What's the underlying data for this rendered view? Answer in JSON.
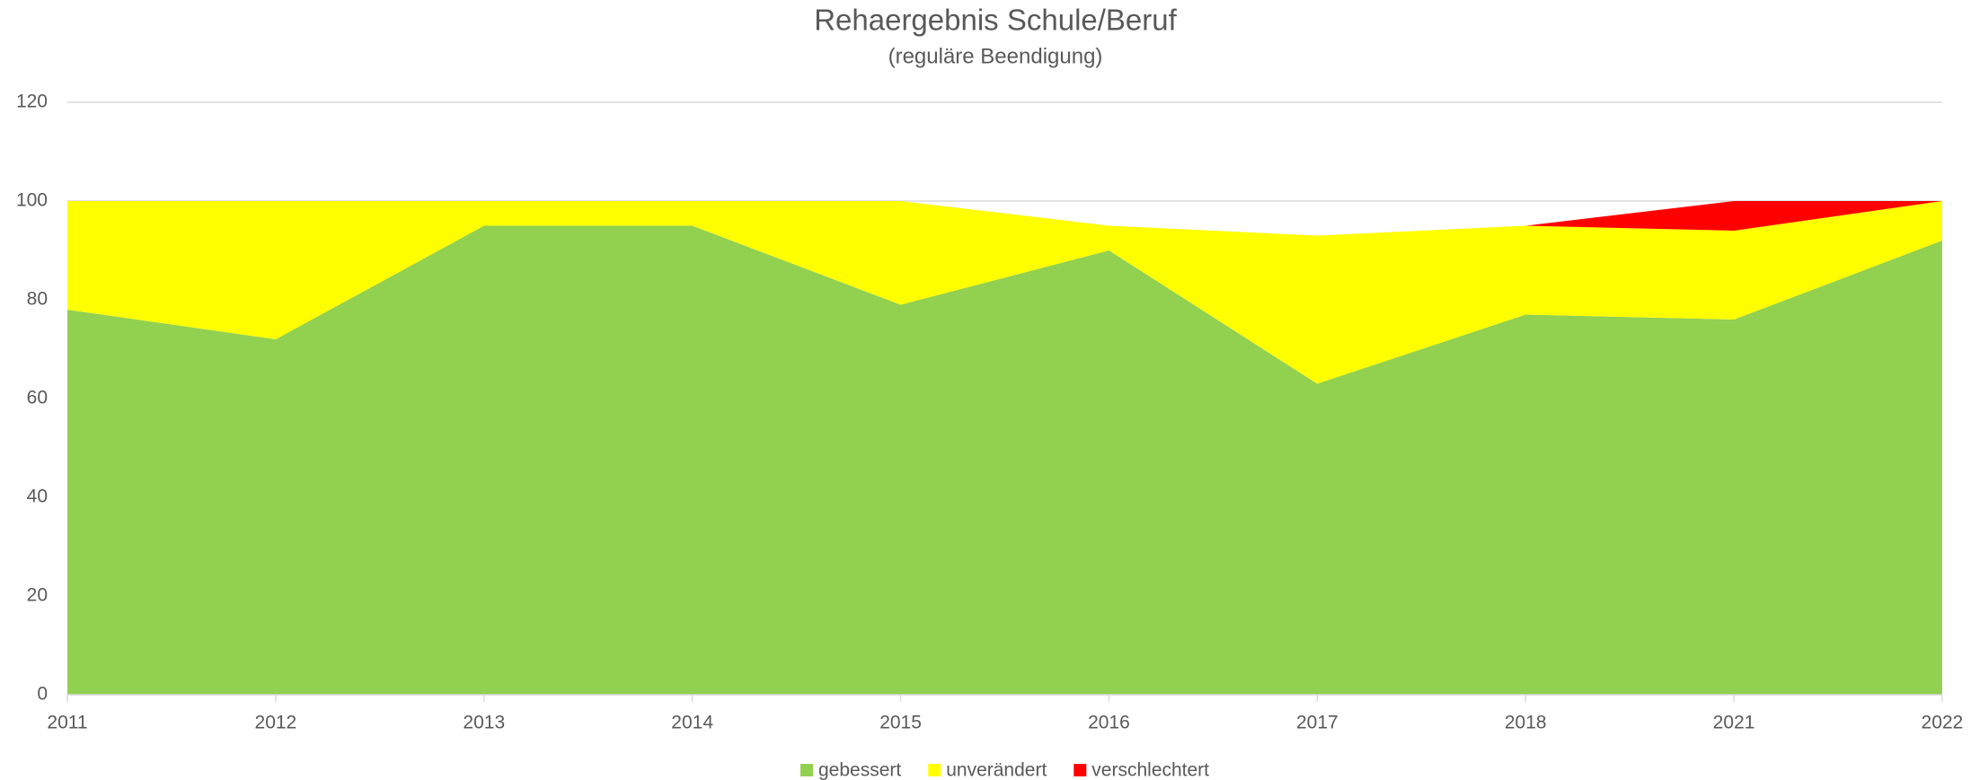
{
  "chart_data": {
    "type": "stacked_area",
    "title": "Rehaergebnis Schule/Beruf",
    "subtitle": "(reguläre Beendigung)",
    "categories": [
      "2011",
      "2012",
      "2013",
      "2014",
      "2015",
      "2016",
      "2017",
      "2018",
      "2021",
      "2022"
    ],
    "series": [
      {
        "name": "gebessert",
        "color": "#92d050",
        "values": [
          78,
          72,
          95,
          95,
          79,
          90,
          63,
          77,
          76,
          92
        ]
      },
      {
        "name": "unverändert",
        "color": "#ffff00",
        "values": [
          22,
          28,
          5,
          5,
          21,
          5,
          30,
          18,
          18,
          8
        ]
      },
      {
        "name": "verschlechtert",
        "color": "#ff0000",
        "values": [
          0,
          0,
          0,
          0,
          0,
          0,
          0,
          0,
          6,
          0
        ]
      }
    ],
    "ylim": [
      0,
      120
    ],
    "yticks": [
      0,
      20,
      40,
      60,
      80,
      100,
      120
    ],
    "grid": true,
    "legend": "bottom"
  }
}
